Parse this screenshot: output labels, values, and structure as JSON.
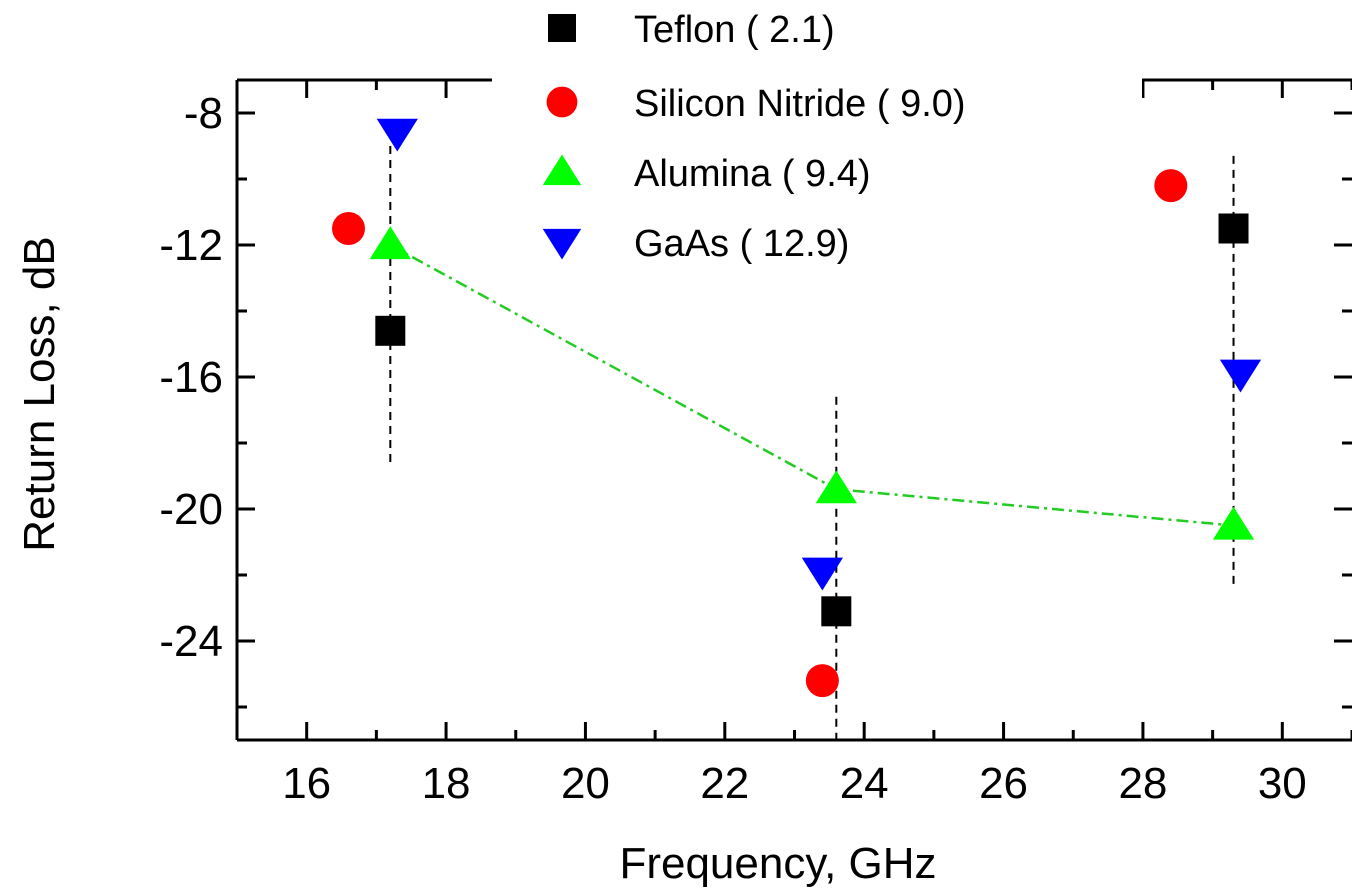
{
  "chart_data": {
    "type": "scatter",
    "xlabel": "Frequency, GHz",
    "ylabel": "Return Loss, dB",
    "xlim": [
      15,
      31
    ],
    "ylim": [
      -27,
      -7
    ],
    "x_ticks": [
      16,
      18,
      20,
      22,
      24,
      26,
      28,
      30
    ],
    "y_ticks": [
      -8,
      -12,
      -16,
      -20,
      -24
    ],
    "x_tick_labels": [
      "16",
      "18",
      "20",
      "22",
      "24",
      "26",
      "28",
      "30"
    ],
    "y_tick_labels": [
      "-8",
      "-12",
      "-16",
      "-20",
      "-24"
    ],
    "grid": false,
    "legend_position": "top-center",
    "series": [
      {
        "name": "Teflon",
        "label": "Teflon  ( 2.1)",
        "marker": "square",
        "color": "#000000",
        "points": [
          [
            17.2,
            -14.6
          ],
          [
            23.6,
            -23.1
          ],
          [
            29.3,
            -11.5
          ]
        ]
      },
      {
        "name": "Silicon Nitride",
        "label": "Silicon Nitride  ( 9.0)",
        "marker": "circle",
        "color": "#ff0000",
        "points": [
          [
            16.6,
            -11.5
          ],
          [
            23.4,
            -25.2
          ],
          [
            28.4,
            -10.2
          ]
        ]
      },
      {
        "name": "Alumina",
        "label": "Alumina ( 9.4)",
        "marker": "triangle-up",
        "color": "#00ff00",
        "points": [
          [
            17.2,
            -12.0
          ],
          [
            23.6,
            -19.4
          ],
          [
            29.3,
            -20.5
          ]
        ]
      },
      {
        "name": "GaAs",
        "label": "GaAs  ( 12.9)",
        "marker": "triangle-down",
        "color": "#0000ff",
        "points": [
          [
            17.3,
            -8.6
          ],
          [
            23.4,
            -21.9
          ],
          [
            29.4,
            -15.9
          ]
        ]
      }
    ],
    "trend_line": {
      "series": "Alumina",
      "style": "dash-dot",
      "color": "#22cc22"
    },
    "vertical_guides": [
      {
        "x": 17.2,
        "y_range": [
          -18.6,
          -9.0
        ]
      },
      {
        "x": 23.6,
        "y_range": [
          -27.0,
          -16.6
        ]
      },
      {
        "x": 29.3,
        "y_range": [
          -22.4,
          -9.3
        ]
      }
    ]
  }
}
